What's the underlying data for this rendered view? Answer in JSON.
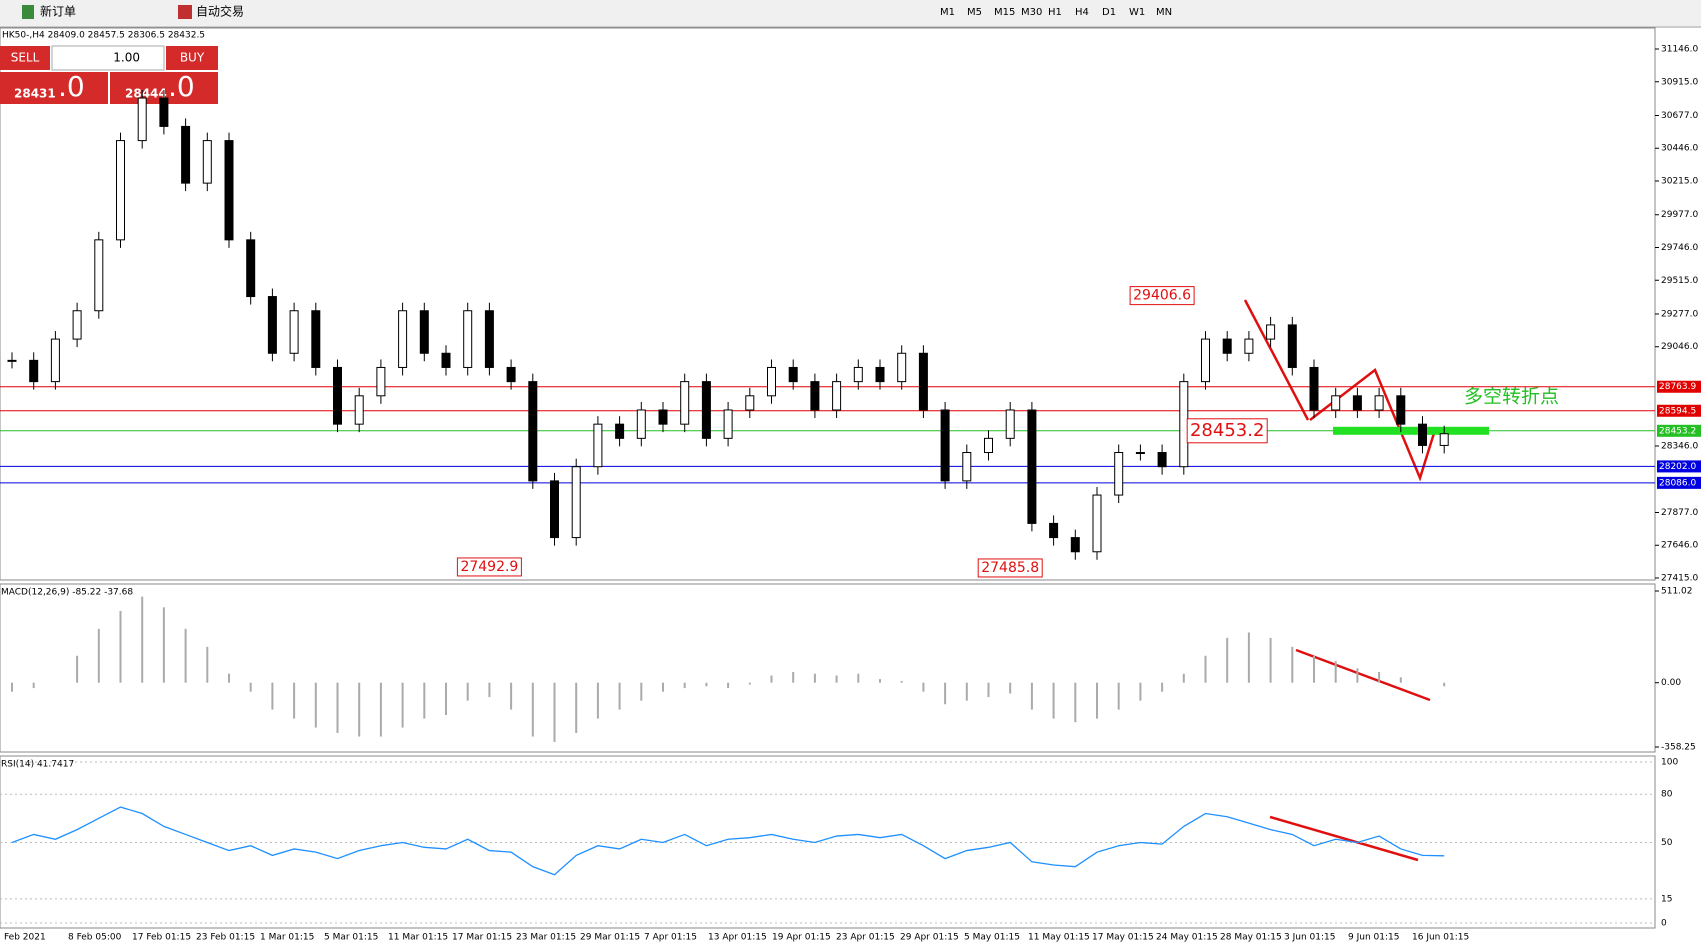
{
  "toolbar": {
    "new_order": "新订单",
    "auto_trade": "自动交易",
    "timeframes": [
      "M1",
      "M5",
      "M15",
      "M30",
      "H1",
      "H4",
      "D1",
      "W1",
      "MN"
    ]
  },
  "header": "HK50-,H4  28409.0 28457.5 28306.5 28432.5",
  "trade_panel": {
    "sell": "SELL",
    "lot": "1.00",
    "buy": "BUY",
    "bid": "28431",
    "bid_frac": ".0",
    "ask": "28444",
    "ask_frac": ".0"
  },
  "price_axis": {
    "ylim": [
      27415,
      31146
    ],
    "ticks": [
      {
        "value": 31146,
        "label": "31146.0"
      },
      {
        "value": 30915,
        "label": "30915.0"
      },
      {
        "value": 30677,
        "label": "30677.0"
      },
      {
        "value": 30446,
        "label": "30446.0"
      },
      {
        "value": 30215,
        "label": "30215.0"
      },
      {
        "value": 29977,
        "label": "29977.0"
      },
      {
        "value": 29746,
        "label": "29746.0"
      },
      {
        "value": 29515,
        "label": "29515.0"
      },
      {
        "value": 29277,
        "label": "29277.0"
      },
      {
        "value": 29046,
        "label": "29046.0"
      },
      {
        "value": 28346,
        "label": "28346.0"
      },
      {
        "value": 27877,
        "label": "27877.0"
      },
      {
        "value": 27646,
        "label": "27646.0"
      },
      {
        "value": 27415,
        "label": "27415.0"
      }
    ]
  },
  "levels": [
    {
      "value": 28763.9,
      "label": "28763.9",
      "color": "#e00000"
    },
    {
      "value": 28594.5,
      "label": "28594.5",
      "color": "#e00000"
    },
    {
      "value": 28453.2,
      "label": "28453.2",
      "color": "#22c022"
    },
    {
      "value": 28202,
      "label": "28202.0",
      "color": "#0000e0"
    },
    {
      "value": 28086,
      "label": "28086.0",
      "color": "#0000e0"
    }
  ],
  "closes": [
    28950,
    28800,
    29100,
    29300,
    29800,
    30500,
    30800,
    30600,
    30200,
    30500,
    29800,
    29400,
    29000,
    29300,
    28900,
    28500,
    28700,
    28900,
    29300,
    29000,
    28900,
    29300,
    28900,
    28800,
    28100,
    27700,
    28200,
    28500,
    28400,
    28600,
    28500,
    28800,
    28400,
    28600,
    28700,
    28900,
    28800,
    28600,
    28800,
    28900,
    28800,
    29000,
    28600,
    28100,
    28300,
    28400,
    28600,
    27800,
    27700,
    27600,
    28000,
    28300,
    28300,
    28200,
    28800,
    29100,
    29000,
    29100,
    29200,
    28900,
    28600,
    28700,
    28600,
    28700,
    28500,
    28350,
    28432.5
  ],
  "annotations": [
    {
      "label": "29406.6",
      "value": 29406.6,
      "index": 53
    },
    {
      "label": "28453.2",
      "value": 28453.2,
      "index": 56
    },
    {
      "label": "27492.9",
      "value": 27492.9,
      "index": 22
    },
    {
      "label": "27485.8",
      "value": 27485.8,
      "index": 46
    }
  ],
  "pivot_note": "多空转折点",
  "macd": {
    "label": "MACD(12,26,9) -85.22 -37.68",
    "ylim": [
      -358.25,
      511.02
    ],
    "ticks": [
      {
        "value": 511.02,
        "label": "511.02"
      },
      {
        "value": 0,
        "label": "0.00"
      },
      {
        "value": -358.25,
        "label": "-358.25"
      }
    ],
    "values": [
      -50,
      -30,
      0,
      150,
      300,
      400,
      480,
      420,
      300,
      200,
      50,
      -50,
      -150,
      -200,
      -250,
      -280,
      -300,
      -300,
      -250,
      -200,
      -180,
      -100,
      -80,
      -150,
      -300,
      -330,
      -280,
      -200,
      -150,
      -100,
      -50,
      -30,
      -20,
      -30,
      -10,
      40,
      60,
      50,
      40,
      50,
      20,
      10,
      -50,
      -120,
      -100,
      -80,
      -60,
      -150,
      -200,
      -220,
      -200,
      -150,
      -100,
      -50,
      50,
      150,
      250,
      280,
      250,
      200,
      150,
      120,
      80,
      60,
      30,
      0,
      -20
    ]
  },
  "rsi": {
    "label": "RSI(14) 41.7417",
    "ylim": [
      0,
      100
    ],
    "ticks": [
      100,
      80,
      50,
      15,
      0
    ],
    "values": [
      50,
      55,
      52,
      58,
      65,
      72,
      68,
      60,
      55,
      50,
      45,
      48,
      42,
      46,
      44,
      40,
      45,
      48,
      50,
      47,
      46,
      52,
      45,
      44,
      35,
      30,
      42,
      48,
      46,
      52,
      50,
      55,
      48,
      52,
      53,
      55,
      52,
      50,
      54,
      55,
      53,
      55,
      48,
      40,
      45,
      47,
      50,
      38,
      36,
      35,
      44,
      48,
      50,
      49,
      60,
      68,
      66,
      62,
      58,
      55,
      48,
      52,
      50,
      54,
      46,
      42,
      41.74
    ]
  },
  "dates": [
    "Feb 2021",
    "8 Feb 05:00",
    "17 Feb 01:15",
    "23 Feb 01:15",
    "1 Mar 01:15",
    "5 Mar 01:15",
    "11 Mar 01:15",
    "17 Mar 01:15",
    "23 Mar 01:15",
    "29 Mar 01:15",
    "7 Apr 01:15",
    "13 Apr 01:15",
    "19 Apr 01:15",
    "23 Apr 01:15",
    "29 Apr 01:15",
    "5 May 01:15",
    "11 May 01:15",
    "17 May 01:15",
    "24 May 01:15",
    "28 May 01:15",
    "3 Jun 01:15",
    "9 Jun 01:15",
    "16 Jun 01:15"
  ]
}
